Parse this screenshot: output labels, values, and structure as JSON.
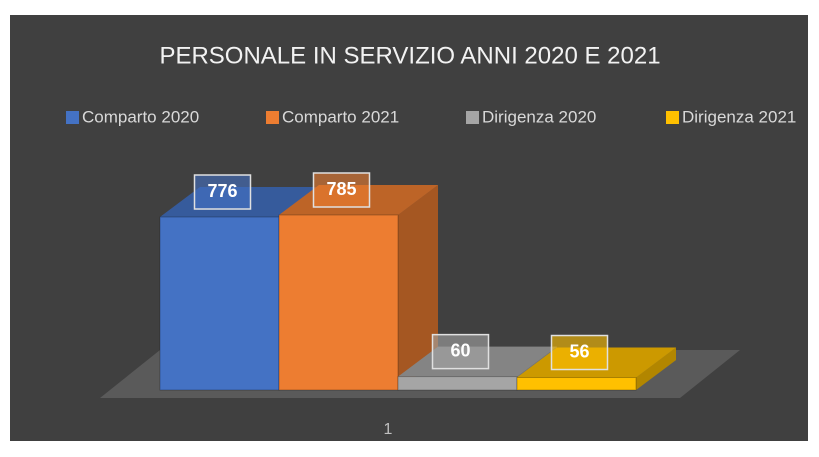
{
  "chart_data": {
    "type": "bar3d",
    "title": "PERSONALE IN SERVIZIO ANNI 2020 E 2021",
    "categories": [
      "1"
    ],
    "series": [
      {
        "name": "Comparto 2020",
        "color": "#4472c4",
        "values": [
          776
        ]
      },
      {
        "name": "Comparto 2021",
        "color": "#ed7d31",
        "values": [
          785
        ]
      },
      {
        "name": "Dirigenza 2020",
        "color": "#a5a5a5",
        "values": [
          60
        ]
      },
      {
        "name": "Dirigenza 2021",
        "color": "#ffc000",
        "values": [
          56
        ]
      }
    ],
    "legend": "top"
  }
}
